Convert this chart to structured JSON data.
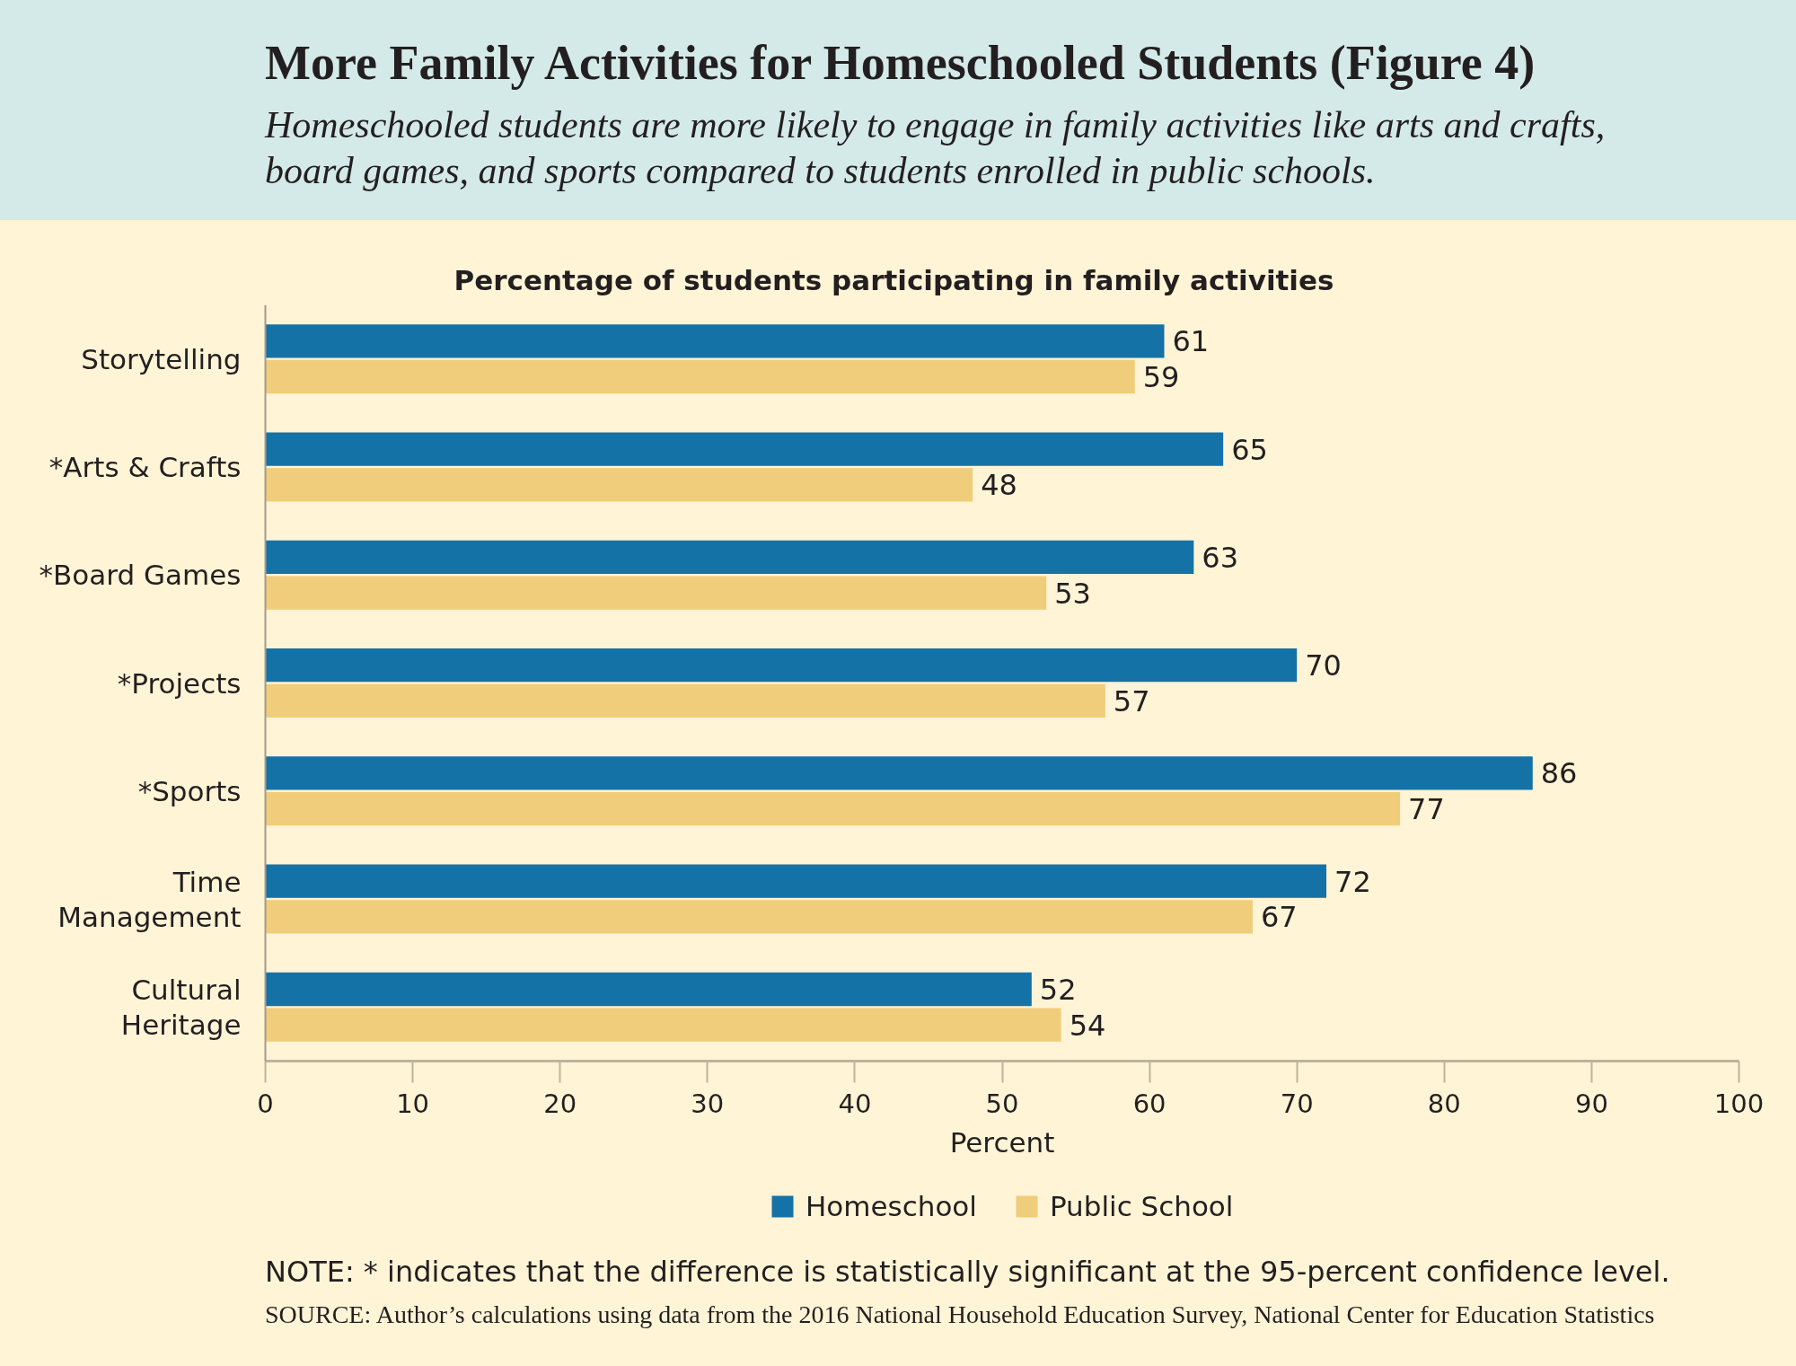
{
  "chart_data": {
    "type": "bar",
    "orientation": "horizontal",
    "title": "More Family Activities for Homeschooled Students (Figure 4)",
    "subtitle": "Homeschooled students are more likely to engage in family activities like arts and crafts, board games, and sports compared to students enrolled in public schools.",
    "categories": [
      "Storytelling",
      "*Arts & Crafts",
      "*Board Games",
      "*Projects",
      "*Sports",
      "Time\nManagement",
      "Cultural\nHeritage"
    ],
    "series": [
      {
        "name": "Homeschool",
        "color": "#1572a7",
        "values": [
          61,
          65,
          63,
          70,
          86,
          72,
          52
        ]
      },
      {
        "name": "Public School",
        "color": "#f0cd7b",
        "values": [
          59,
          48,
          53,
          57,
          77,
          67,
          54
        ]
      }
    ],
    "xlabel": "Percent",
    "xlim": [
      0,
      100
    ],
    "xticks": [
      0,
      10,
      20,
      30,
      40,
      50,
      60,
      70,
      80,
      90,
      100
    ],
    "data_labels": true,
    "legend": "bottom",
    "annotations": [
      "Percentage of students participating in family activities",
      "NOTE: * indicates that the difference is statistically significant at the 95-percent confidence level.",
      "SOURCE: Author’s calculations using data from the 2016 National Household Education Survey, National Center for Education Statistics"
    ]
  }
}
